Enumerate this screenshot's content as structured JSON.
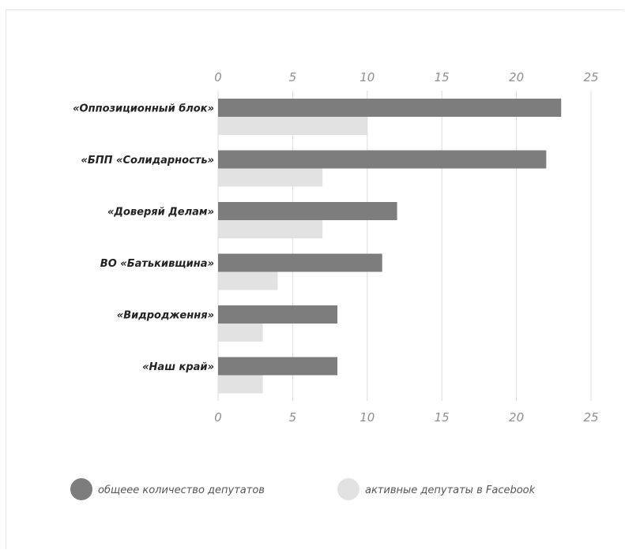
{
  "chart_data": {
    "type": "bar",
    "orientation": "horizontal",
    "categories": [
      "«Оппозиционный блок»",
      "«БПП «Солидарность»",
      "«Доверяй Делам»",
      "ВО «Батькивщина»",
      "«Видродження»",
      "«Наш край»"
    ],
    "series": [
      {
        "name": "общеее количество депутатов",
        "color": "#7d7d7d",
        "values": [
          23,
          22,
          12,
          11,
          8,
          8
        ]
      },
      {
        "name": "активные депутаты в Facebook",
        "color": "#e2e2e2",
        "values": [
          10,
          7,
          7,
          4,
          3,
          3
        ]
      }
    ],
    "xlim": [
      0,
      25
    ],
    "xticks": [
      "0",
      "5",
      "10",
      "15",
      "20",
      "25"
    ],
    "grid": true,
    "legend_position": "bottom-left"
  }
}
